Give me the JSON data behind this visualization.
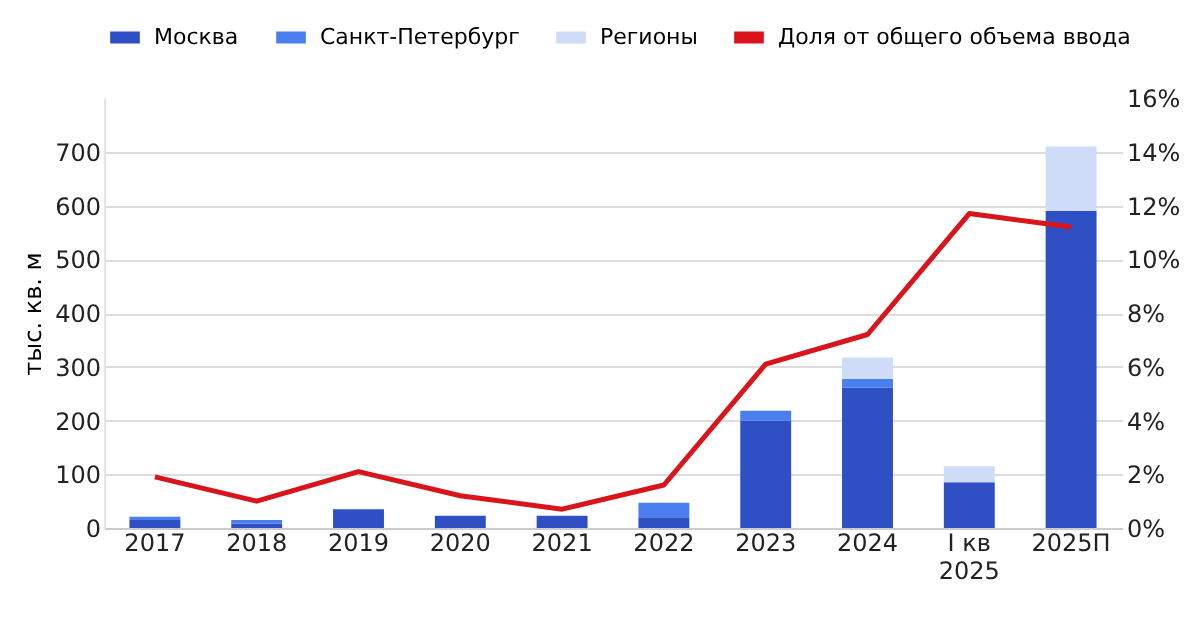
{
  "chart_data": {
    "type": "bar",
    "stacked": true,
    "ylabel": "тыс. кв. м",
    "categories": [
      "2017",
      "2018",
      "2019",
      "2020",
      "2021",
      "2022",
      "2023",
      "2024",
      "I кв 2025",
      "2025П"
    ],
    "series": [
      {
        "name": "Москва",
        "color": "#2f4fc4",
        "values": [
          15,
          8,
          35,
          23,
          23,
          20,
          200,
          261,
          85,
          590
        ]
      },
      {
        "name": "Санкт-Петербург",
        "color": "#4a7ff0",
        "values": [
          6,
          7,
          0,
          0,
          0,
          27,
          18,
          16,
          0,
          0
        ]
      },
      {
        "name": "Регионы",
        "color": "#cfdcf7",
        "values": [
          0,
          0,
          0,
          0,
          0,
          0,
          0,
          40,
          30,
          120
        ]
      },
      {
        "name": "Доля от общего объема ввода",
        "type": "line",
        "axis": "y2",
        "color": "#d9141a",
        "values": [
          1.9,
          1.0,
          2.1,
          1.2,
          0.7,
          1.6,
          6.1,
          7.2,
          11.7,
          11.2
        ]
      }
    ],
    "ylim": [
      0,
      800
    ],
    "yticks": [
      0,
      100,
      200,
      300,
      400,
      500,
      600,
      700
    ],
    "y2lim": [
      0,
      16
    ],
    "y2ticks": [
      {
        "value": 0,
        "label": "0%"
      },
      {
        "value": 2,
        "label": "2%"
      },
      {
        "value": 4,
        "label": "4%"
      },
      {
        "value": 6,
        "label": "6%"
      },
      {
        "value": 8,
        "label": "8%"
      },
      {
        "value": 10,
        "label": "10%"
      },
      {
        "value": 12,
        "label": "12%"
      },
      {
        "value": 14,
        "label": "14%"
      },
      {
        "value": 16,
        "label": "16%"
      }
    ],
    "grid": "y",
    "legend": "top",
    "marker": "none",
    "line_style": "solid"
  }
}
